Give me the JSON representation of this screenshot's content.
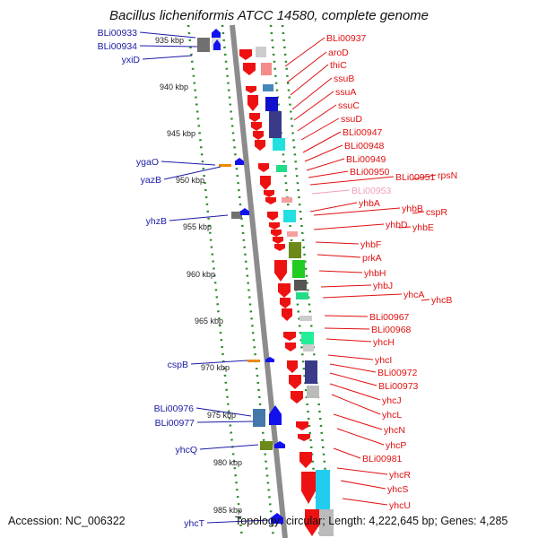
{
  "title": "Bacillus licheniformis ATCC 14580, complete genome",
  "footer": {
    "accession": "Accession: NC_006322",
    "summary": "Topology: circular; Length: 4,222,645 bp; Genes: 4,285"
  },
  "colors": {
    "left_label": "#1a1aa6",
    "right_label": "#e01010",
    "faded_label": "#f0a0b8",
    "track_dots": "#2a8a2a",
    "backbone": "#8c8c8c"
  },
  "kbp_ticks": [
    "935 kbp",
    "940 kbp",
    "945 kbp",
    "950 kbp",
    "955 kbp",
    "960 kbp",
    "965 kbp",
    "970 kbp",
    "975 kbp",
    "980 kbp",
    "985 kbp"
  ],
  "left_labels": [
    "BLi00933",
    "BLi00934",
    "yxiD",
    "ygaO",
    "yazB",
    "yhzB",
    "cspB",
    "BLi00976",
    "BLi00977",
    "yhcQ",
    "yhcT"
  ],
  "right_labels": [
    "BLi00937",
    "aroD",
    "thiC",
    "ssuB",
    "ssuA",
    "ssuC",
    "ssuD",
    "BLi00947",
    "BLi00948",
    "BLi00949",
    "BLi00950",
    "BLi00951",
    "rpsN",
    "BLi00953",
    "yhbA",
    "yhbB",
    "cspR",
    "yhbD",
    "yhbE",
    "yhbF",
    "prkA",
    "yhbH",
    "yhbJ",
    "yhcA",
    "yhcB",
    "BLi00967",
    "BLi00968",
    "yhcH",
    "yhcI",
    "BLi00972",
    "BLi00973",
    "yhcJ",
    "yhcL",
    "yhcN",
    "yhcP",
    "BLi00981",
    "yhcR",
    "yhcS",
    "yhcU"
  ]
}
